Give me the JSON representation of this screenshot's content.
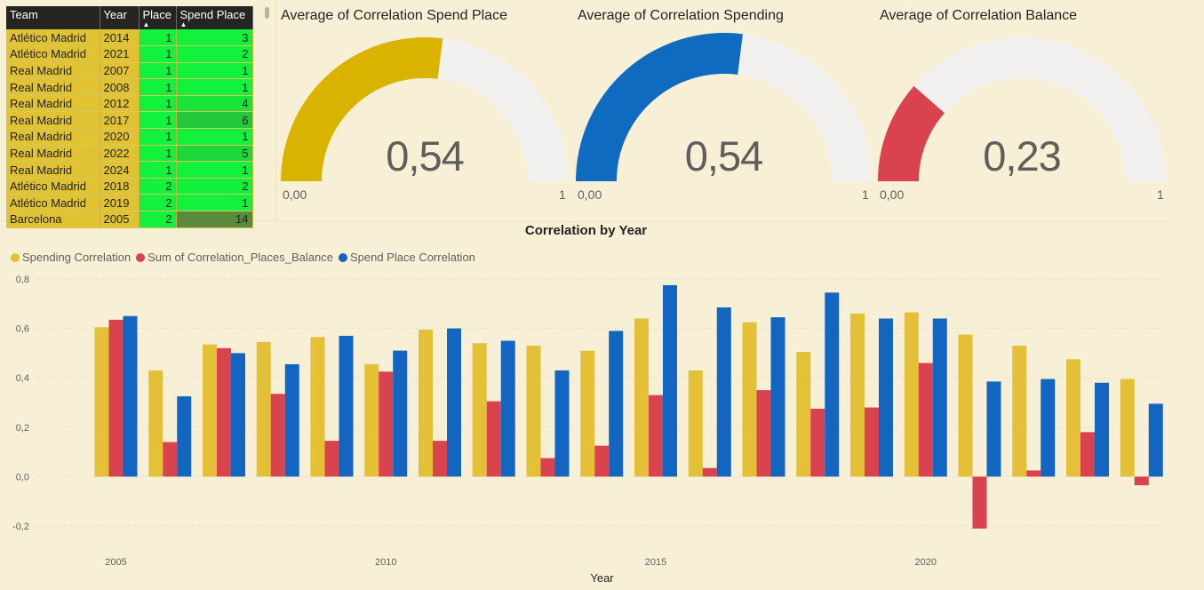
{
  "table": {
    "headers": [
      "Team",
      "Year",
      "Place",
      "Spend Place"
    ],
    "rows": [
      {
        "team": "Atlético Madrid",
        "year": "2014",
        "place": "1",
        "spend_place": "3"
      },
      {
        "team": "Atlético Madrid",
        "year": "2021",
        "place": "1",
        "spend_place": "2"
      },
      {
        "team": "Real Madrid",
        "year": "2007",
        "place": "1",
        "spend_place": "1"
      },
      {
        "team": "Real Madrid",
        "year": "2008",
        "place": "1",
        "spend_place": "1"
      },
      {
        "team": "Real Madrid",
        "year": "2012",
        "place": "1",
        "spend_place": "4"
      },
      {
        "team": "Real Madrid",
        "year": "2017",
        "place": "1",
        "spend_place": "6"
      },
      {
        "team": "Real Madrid",
        "year": "2020",
        "place": "1",
        "spend_place": "1"
      },
      {
        "team": "Real Madrid",
        "year": "2022",
        "place": "1",
        "spend_place": "5"
      },
      {
        "team": "Real Madrid",
        "year": "2024",
        "place": "1",
        "spend_place": "1"
      },
      {
        "team": "Atlético Madrid",
        "year": "2018",
        "place": "2",
        "spend_place": "2"
      },
      {
        "team": "Atlético Madrid",
        "year": "2019",
        "place": "2",
        "spend_place": "1"
      },
      {
        "team": "Barcelona",
        "year": "2005",
        "place": "2",
        "spend_place": "14"
      }
    ],
    "spend_place_colors": [
      "#12f23c",
      "#12f23c",
      "#12f23c",
      "#12f23c",
      "#19e43a",
      "#24c83a",
      "#12f23c",
      "#1ed83a",
      "#12f23c",
      "#12f23c",
      "#12f23c",
      "#5a8a3c"
    ]
  },
  "gauges": [
    {
      "title": "Average of Correlation Spend Place",
      "value_label": "0,54",
      "value": 0.54,
      "min_label": "0,00",
      "max_label": "1",
      "color": "#d9b300"
    },
    {
      "title": "Average of Correlation Spending",
      "value_label": "0,54",
      "value": 0.54,
      "min_label": "0,00",
      "max_label": "1",
      "color": "#0f6bbf"
    },
    {
      "title": "Average of Correlation Balance",
      "value_label": "0,23",
      "value": 0.23,
      "min_label": "0,00",
      "max_label": "1",
      "color": "#d9434e"
    }
  ],
  "chart_data": {
    "type": "bar",
    "title": "Correlation by Year",
    "xlabel": "Year",
    "ylabel": "",
    "ylim": [
      -0.2,
      0.8
    ],
    "yticks": [
      "0,8",
      "0,6",
      "0,4",
      "0,2",
      "0,0",
      "-0,2"
    ],
    "xtick_labels": [
      "2005",
      "2010",
      "2015",
      "2020"
    ],
    "grid": true,
    "legend_position": "top-left",
    "categories": [
      2005,
      2006,
      2007,
      2008,
      2009,
      2010,
      2011,
      2012,
      2013,
      2014,
      2015,
      2016,
      2017,
      2018,
      2019,
      2020,
      2021,
      2022,
      2023,
      2024
    ],
    "series": [
      {
        "name": "Spending Correlation",
        "color": "#e3c035",
        "values": [
          0.605,
          0.43,
          0.535,
          0.545,
          0.565,
          0.455,
          0.595,
          0.54,
          0.53,
          0.51,
          0.64,
          0.43,
          0.625,
          0.505,
          0.66,
          0.665,
          0.575,
          0.53,
          0.475,
          0.395
        ]
      },
      {
        "name": "Sum of Correlation_Places_Balance",
        "color": "#d9434e",
        "values": [
          0.635,
          0.14,
          0.52,
          0.335,
          0.145,
          0.425,
          0.145,
          0.305,
          0.075,
          0.125,
          0.33,
          0.035,
          0.35,
          0.275,
          0.28,
          0.46,
          -0.21,
          0.025,
          0.18,
          -0.035
        ]
      },
      {
        "name": "Spend Place Correlation",
        "color": "#1266c2",
        "values": [
          0.65,
          0.325,
          0.5,
          0.455,
          0.57,
          0.51,
          0.6,
          0.55,
          0.43,
          0.59,
          0.775,
          0.685,
          0.645,
          0.745,
          0.64,
          0.64,
          0.385,
          0.395,
          0.38,
          0.295
        ]
      }
    ]
  }
}
